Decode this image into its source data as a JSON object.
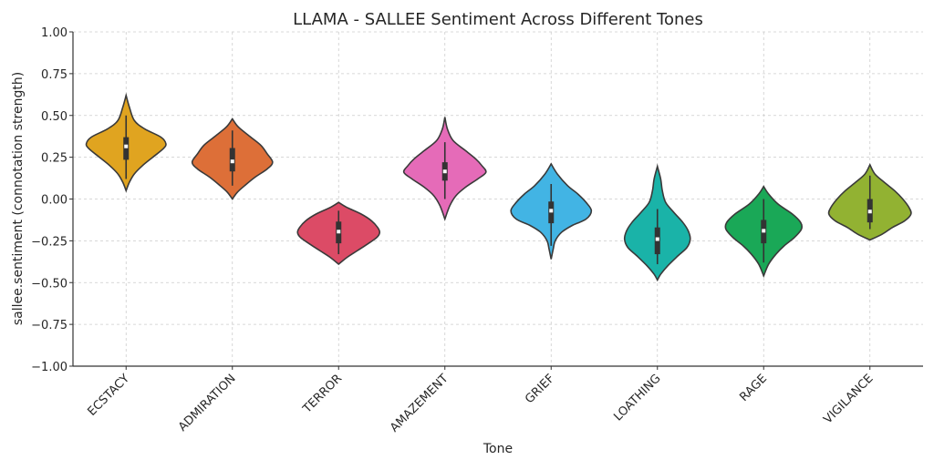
{
  "chart_data": {
    "type": "violin",
    "title": "LLAMA - SALLEE Sentiment Across Different Tones",
    "xlabel": "Tone",
    "ylabel": "sallee.sentiment (connotation strength)",
    "ylim": [
      -1.0,
      1.0
    ],
    "yticks": [
      "1.00",
      "0.75",
      "0.50",
      "0.25",
      "0.00",
      "−0.25",
      "−0.50",
      "−0.75",
      "−1.00"
    ],
    "ytick_values": [
      1.0,
      0.75,
      0.5,
      0.25,
      0.0,
      -0.25,
      -0.5,
      -0.75,
      -1.0
    ],
    "grid": true,
    "categories": [
      "ECSTACY",
      "ADMIRATION",
      "TERROR",
      "AMAZEMENT",
      "GRIEF",
      "LOATHING",
      "RAGE",
      "VIGILANCE"
    ],
    "violins": [
      {
        "category": "ECSTACY",
        "color": "#e0a420",
        "median": 0.315,
        "q1": 0.235,
        "q3": 0.37,
        "whisker_low": 0.12,
        "whisker_high": 0.5,
        "density": [
          [
            0.62,
            0
          ],
          [
            0.55,
            0.08
          ],
          [
            0.47,
            0.2
          ],
          [
            0.42,
            0.45
          ],
          [
            0.37,
            0.85
          ],
          [
            0.33,
            0.97
          ],
          [
            0.3,
            0.9
          ],
          [
            0.25,
            0.65
          ],
          [
            0.2,
            0.4
          ],
          [
            0.15,
            0.2
          ],
          [
            0.1,
            0.08
          ],
          [
            0.05,
            0
          ]
        ]
      },
      {
        "category": "ADMIRATION",
        "color": "#dd6f38",
        "median": 0.225,
        "q1": 0.165,
        "q3": 0.305,
        "whisker_low": 0.08,
        "whisker_high": 0.41,
        "density": [
          [
            0.48,
            0
          ],
          [
            0.43,
            0.15
          ],
          [
            0.37,
            0.45
          ],
          [
            0.32,
            0.7
          ],
          [
            0.27,
            0.85
          ],
          [
            0.22,
            0.98
          ],
          [
            0.18,
            0.85
          ],
          [
            0.13,
            0.55
          ],
          [
            0.08,
            0.3
          ],
          [
            0.04,
            0.12
          ],
          [
            0.0,
            0
          ]
        ]
      },
      {
        "category": "TERROR",
        "color": "#dc4b66",
        "median": -0.195,
        "q1": -0.265,
        "q3": -0.135,
        "whisker_low": -0.33,
        "whisker_high": -0.07,
        "density": [
          [
            -0.02,
            0
          ],
          [
            -0.05,
            0.2
          ],
          [
            -0.09,
            0.55
          ],
          [
            -0.13,
            0.8
          ],
          [
            -0.17,
            0.95
          ],
          [
            -0.2,
            1.0
          ],
          [
            -0.23,
            0.93
          ],
          [
            -0.27,
            0.7
          ],
          [
            -0.31,
            0.45
          ],
          [
            -0.35,
            0.2
          ],
          [
            -0.39,
            0
          ]
        ]
      },
      {
        "category": "AMAZEMENT",
        "color": "#e56bb8",
        "median": 0.165,
        "q1": 0.11,
        "q3": 0.22,
        "whisker_low": 0.0,
        "whisker_high": 0.34,
        "density": [
          [
            0.49,
            0
          ],
          [
            0.42,
            0.06
          ],
          [
            0.35,
            0.2
          ],
          [
            0.29,
            0.5
          ],
          [
            0.24,
            0.75
          ],
          [
            0.2,
            0.9
          ],
          [
            0.16,
            1.0
          ],
          [
            0.12,
            0.8
          ],
          [
            0.07,
            0.5
          ],
          [
            0.02,
            0.27
          ],
          [
            -0.04,
            0.12
          ],
          [
            -0.12,
            0
          ]
        ]
      },
      {
        "category": "GRIEF",
        "color": "#42b4e4",
        "median": -0.07,
        "q1": -0.145,
        "q3": -0.015,
        "whisker_low": -0.28,
        "whisker_high": 0.09,
        "density": [
          [
            0.21,
            0
          ],
          [
            0.15,
            0.15
          ],
          [
            0.08,
            0.4
          ],
          [
            0.03,
            0.65
          ],
          [
            -0.02,
            0.85
          ],
          [
            -0.07,
            0.98
          ],
          [
            -0.12,
            0.85
          ],
          [
            -0.16,
            0.5
          ],
          [
            -0.2,
            0.25
          ],
          [
            -0.25,
            0.1
          ],
          [
            -0.3,
            0.05
          ],
          [
            -0.36,
            0
          ]
        ]
      },
      {
        "category": "LOATHING",
        "color": "#1ab3a8",
        "median": -0.24,
        "q1": -0.33,
        "q3": -0.17,
        "whisker_low": -0.39,
        "whisker_high": -0.06,
        "density": [
          [
            0.195,
            0
          ],
          [
            0.12,
            0.08
          ],
          [
            0.05,
            0.12
          ],
          [
            -0.02,
            0.2
          ],
          [
            -0.08,
            0.4
          ],
          [
            -0.14,
            0.62
          ],
          [
            -0.19,
            0.75
          ],
          [
            -0.24,
            0.8
          ],
          [
            -0.29,
            0.72
          ],
          [
            -0.34,
            0.5
          ],
          [
            -0.4,
            0.25
          ],
          [
            -0.45,
            0.08
          ],
          [
            -0.485,
            0
          ]
        ]
      },
      {
        "category": "RAGE",
        "color": "#1aa857",
        "median": -0.19,
        "q1": -0.265,
        "q3": -0.125,
        "whisker_low": -0.38,
        "whisker_high": 0.0,
        "density": [
          [
            0.075,
            0
          ],
          [
            0.03,
            0.12
          ],
          [
            -0.03,
            0.35
          ],
          [
            -0.09,
            0.7
          ],
          [
            -0.14,
            0.9
          ],
          [
            -0.18,
            0.92
          ],
          [
            -0.23,
            0.75
          ],
          [
            -0.28,
            0.5
          ],
          [
            -0.33,
            0.3
          ],
          [
            -0.39,
            0.12
          ],
          [
            -0.46,
            0
          ]
        ]
      },
      {
        "category": "VIGILANCE",
        "color": "#92b232",
        "median": -0.075,
        "q1": -0.14,
        "q3": 0.0,
        "whisker_low": -0.18,
        "whisker_high": 0.14,
        "density": [
          [
            0.205,
            0
          ],
          [
            0.15,
            0.12
          ],
          [
            0.1,
            0.35
          ],
          [
            0.05,
            0.6
          ],
          [
            0.0,
            0.8
          ],
          [
            -0.05,
            0.95
          ],
          [
            -0.09,
            1.0
          ],
          [
            -0.13,
            0.85
          ],
          [
            -0.17,
            0.55
          ],
          [
            -0.21,
            0.3
          ],
          [
            -0.245,
            0
          ]
        ]
      }
    ]
  }
}
